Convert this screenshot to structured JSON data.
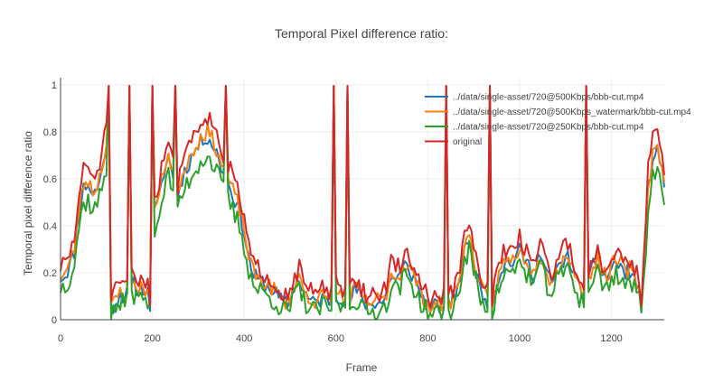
{
  "chart_data": {
    "type": "line",
    "title": "Temporal Pixel difference ratio:",
    "xlabel": "Frame",
    "ylabel": "Temporal pixel difference ratio",
    "xlim": [
      0,
      1315
    ],
    "ylim": [
      0,
      1.03
    ],
    "x_ticks": [
      0,
      200,
      400,
      600,
      800,
      1000,
      1200
    ],
    "x_tick_labels": [
      "0",
      "200",
      "400",
      "600",
      "800",
      "1000",
      "1200"
    ],
    "y_ticks": [
      0,
      0.2,
      0.4,
      0.6,
      0.8,
      1
    ],
    "y_tick_labels": [
      "0",
      "0.2",
      "0.4",
      "0.6",
      "0.8",
      "1"
    ],
    "grid": true,
    "legend_position": "top-right",
    "frame_step": 5,
    "x_start": 0,
    "spikes": [
      104,
      152,
      201,
      252,
      362,
      595,
      627,
      838,
      937,
      1146
    ],
    "base_profile": [
      [
        0,
        0.17
      ],
      [
        10,
        0.18
      ],
      [
        20,
        0.22
      ],
      [
        30,
        0.28
      ],
      [
        40,
        0.45
      ],
      [
        50,
        0.55
      ],
      [
        60,
        0.57
      ],
      [
        70,
        0.52
      ],
      [
        80,
        0.55
      ],
      [
        90,
        0.62
      ],
      [
        95,
        0.68
      ],
      [
        100,
        0.72
      ],
      [
        105,
        0.55
      ],
      [
        110,
        0.03
      ],
      [
        120,
        0.07
      ],
      [
        130,
        0.1
      ],
      [
        140,
        0.09
      ],
      [
        150,
        0.12
      ],
      [
        160,
        0.14
      ],
      [
        170,
        0.11
      ],
      [
        180,
        0.13
      ],
      [
        190,
        0.1
      ],
      [
        198,
        0.02
      ],
      [
        205,
        0.45
      ],
      [
        215,
        0.5
      ],
      [
        225,
        0.62
      ],
      [
        235,
        0.68
      ],
      [
        245,
        0.6
      ],
      [
        250,
        0.4
      ],
      [
        258,
        0.55
      ],
      [
        270,
        0.62
      ],
      [
        280,
        0.66
      ],
      [
        290,
        0.7
      ],
      [
        300,
        0.73
      ],
      [
        310,
        0.76
      ],
      [
        320,
        0.77
      ],
      [
        330,
        0.74
      ],
      [
        340,
        0.7
      ],
      [
        350,
        0.64
      ],
      [
        360,
        0.58
      ],
      [
        370,
        0.55
      ],
      [
        380,
        0.5
      ],
      [
        390,
        0.45
      ],
      [
        400,
        0.36
      ],
      [
        410,
        0.25
      ],
      [
        420,
        0.18
      ],
      [
        430,
        0.16
      ],
      [
        440,
        0.15
      ],
      [
        450,
        0.13
      ],
      [
        460,
        0.12
      ],
      [
        470,
        0.1
      ],
      [
        480,
        0.07
      ],
      [
        490,
        0.06
      ],
      [
        500,
        0.07
      ],
      [
        510,
        0.14
      ],
      [
        520,
        0.16
      ],
      [
        530,
        0.11
      ],
      [
        540,
        0.08
      ],
      [
        550,
        0.06
      ],
      [
        560,
        0.07
      ],
      [
        570,
        0.08
      ],
      [
        580,
        0.07
      ],
      [
        590,
        0.08
      ],
      [
        600,
        0.1
      ],
      [
        610,
        0.09
      ],
      [
        620,
        0.06
      ],
      [
        630,
        0.07
      ],
      [
        640,
        0.12
      ],
      [
        650,
        0.1
      ],
      [
        660,
        0.07
      ],
      [
        670,
        0.05
      ],
      [
        680,
        0.06
      ],
      [
        690,
        0.07
      ],
      [
        700,
        0.06
      ],
      [
        710,
        0.1
      ],
      [
        720,
        0.18
      ],
      [
        730,
        0.16
      ],
      [
        740,
        0.18
      ],
      [
        750,
        0.22
      ],
      [
        760,
        0.2
      ],
      [
        770,
        0.17
      ],
      [
        780,
        0.12
      ],
      [
        790,
        0.08
      ],
      [
        800,
        0.05
      ],
      [
        810,
        0.04
      ],
      [
        820,
        0.05
      ],
      [
        830,
        0.05
      ],
      [
        840,
        0.07
      ],
      [
        850,
        0.06
      ],
      [
        860,
        0.1
      ],
      [
        870,
        0.18
      ],
      [
        880,
        0.28
      ],
      [
        890,
        0.34
      ],
      [
        900,
        0.25
      ],
      [
        910,
        0.15
      ],
      [
        920,
        0.1
      ],
      [
        930,
        0.07
      ],
      [
        940,
        0.05
      ],
      [
        950,
        0.14
      ],
      [
        960,
        0.2
      ],
      [
        970,
        0.24
      ],
      [
        980,
        0.22
      ],
      [
        990,
        0.26
      ],
      [
        1000,
        0.28
      ],
      [
        1010,
        0.25
      ],
      [
        1020,
        0.22
      ],
      [
        1030,
        0.18
      ],
      [
        1040,
        0.26
      ],
      [
        1050,
        0.24
      ],
      [
        1060,
        0.18
      ],
      [
        1070,
        0.14
      ],
      [
        1080,
        0.2
      ],
      [
        1090,
        0.22
      ],
      [
        1100,
        0.26
      ],
      [
        1110,
        0.24
      ],
      [
        1120,
        0.18
      ],
      [
        1130,
        0.12
      ],
      [
        1140,
        0.1
      ],
      [
        1150,
        0.14
      ],
      [
        1160,
        0.22
      ],
      [
        1170,
        0.24
      ],
      [
        1180,
        0.18
      ],
      [
        1190,
        0.17
      ],
      [
        1200,
        0.21
      ],
      [
        1210,
        0.23
      ],
      [
        1220,
        0.22
      ],
      [
        1230,
        0.18
      ],
      [
        1240,
        0.2
      ],
      [
        1250,
        0.16
      ],
      [
        1260,
        0.12
      ],
      [
        1265,
        0.05
      ],
      [
        1272,
        0.25
      ],
      [
        1280,
        0.55
      ],
      [
        1290,
        0.68
      ],
      [
        1300,
        0.7
      ],
      [
        1310,
        0.65
      ],
      [
        1315,
        0.55
      ]
    ],
    "series": [
      {
        "name": "../data/single-asset/720@500Kbps/bbb-cut.mp4",
        "color": "#1f77b4",
        "offset": 0.01,
        "scale": 1.0,
        "noise": 0.035,
        "seed": 11
      },
      {
        "name": "../data/single-asset/720@500Kbps_watermark/bbb-cut.mp4",
        "color": "#ff7f0e",
        "offset": 0.015,
        "scale": 1.02,
        "noise": 0.035,
        "seed": 23
      },
      {
        "name": "../data/single-asset/720@250Kbps/bbb-cut.mp4",
        "color": "#2ca02c",
        "offset": -0.02,
        "scale": 0.93,
        "noise": 0.045,
        "seed": 37
      },
      {
        "name": "original",
        "color": "#d62728",
        "offset": 0.045,
        "scale": 1.07,
        "noise": 0.04,
        "seed": 51
      }
    ]
  }
}
